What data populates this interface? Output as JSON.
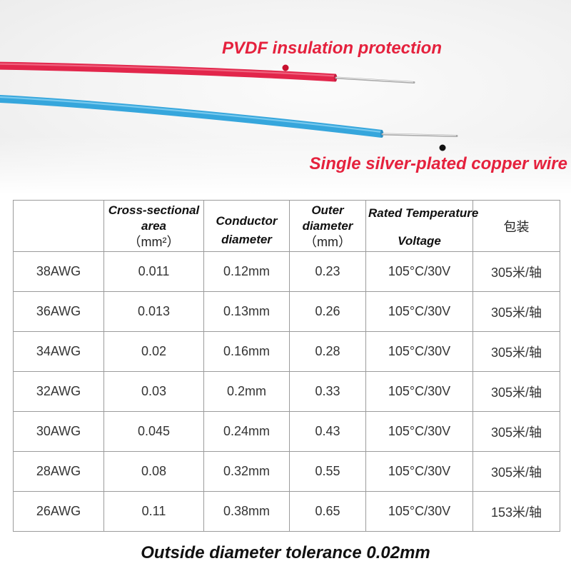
{
  "callouts": {
    "insulation": "PVDF insulation protection",
    "conductor": "Single silver-plated copper wire"
  },
  "colors": {
    "callout_text": "#e5213d",
    "red_wire": "#e2264b",
    "blue_wire": "#36a6dc",
    "conductor": "#bdbdbd",
    "table_border": "#9b9b9b",
    "cell_text": "#333333"
  },
  "table": {
    "header": {
      "cross_section": {
        "label": "Cross-sectional area",
        "unit": "（mm²）"
      },
      "conductor_diameter": {
        "label": "Conductor diameter"
      },
      "outer_diameter": {
        "label": "Outer diameter",
        "unit": "（mm）"
      },
      "rating": {
        "line1": "Rated Temperature",
        "line2": "Voltage"
      },
      "packaging": "包装"
    },
    "rows": [
      [
        "38AWG",
        "0.011",
        "0.12mm",
        "0.23",
        "105°C/30V",
        "305米/轴"
      ],
      [
        "36AWG",
        "0.013",
        "0.13mm",
        "0.26",
        "105°C/30V",
        "305米/轴"
      ],
      [
        "34AWG",
        "0.02",
        "0.16mm",
        "0.28",
        "105°C/30V",
        "305米/轴"
      ],
      [
        "32AWG",
        "0.03",
        "0.2mm",
        "0.33",
        "105°C/30V",
        "305米/轴"
      ],
      [
        "30AWG",
        "0.045",
        "0.24mm",
        "0.43",
        "105°C/30V",
        "305米/轴"
      ],
      [
        "28AWG",
        "0.08",
        "0.32mm",
        "0.55",
        "105°C/30V",
        "305米/轴"
      ],
      [
        "26AWG",
        "0.11",
        "0.38mm",
        "0.65",
        "105°C/30V",
        "153米/轴"
      ]
    ]
  },
  "footer": {
    "note": "Outside diameter tolerance 0.02mm"
  }
}
